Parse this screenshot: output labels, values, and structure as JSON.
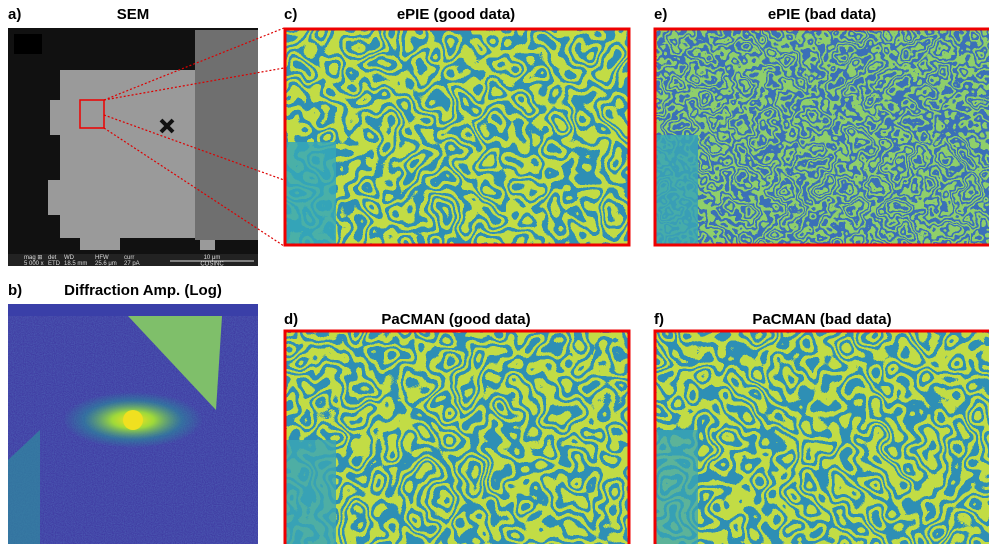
{
  "panels": [
    {
      "label": "a)",
      "title": "SEM"
    },
    {
      "label": "b)",
      "title": "Diffraction Amp. (Log)"
    },
    {
      "label": "c)",
      "title": "ePIE (good data)"
    },
    {
      "label": "d)",
      "title": "PaCMAN (good data)"
    },
    {
      "label": "e)",
      "title": "ePIE (bad data)"
    },
    {
      "label": "f)",
      "title": "PaCMAN (bad data)"
    }
  ],
  "sem_info": {
    "scale_bar": "10 μm",
    "fields": [
      [
        "mag ⊞",
        "5 000 x"
      ],
      [
        "det",
        "ETD"
      ],
      [
        "WD",
        "18.5 mm"
      ],
      [
        "HFW",
        "25.6 μm"
      ],
      [
        "curr",
        "27 pA"
      ]
    ],
    "lab": "COSINC"
  }
}
